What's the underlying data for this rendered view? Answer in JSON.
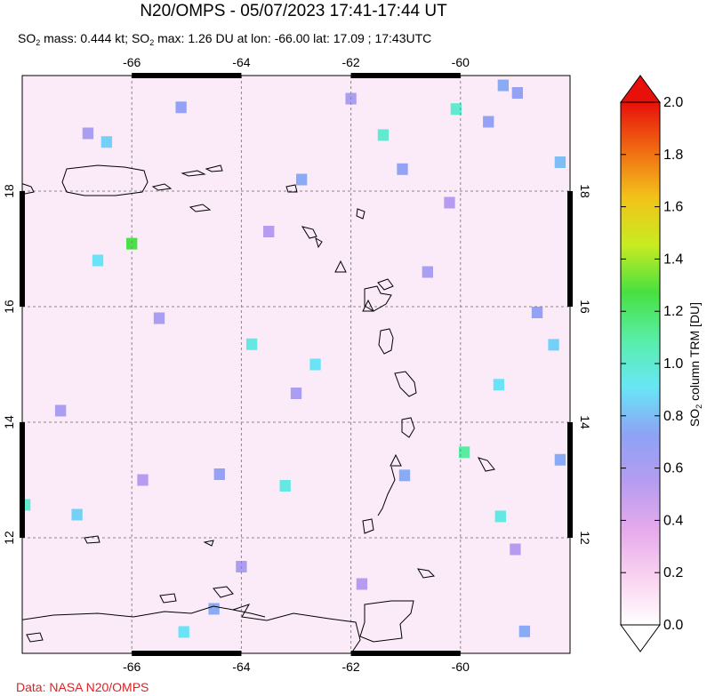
{
  "chart_data": {
    "type": "map",
    "title": "N20/OMPS - 05/07/2023 17:41-17:44 UT",
    "subtitle": [
      "SO",
      "2",
      " mass: 0.444 kt; SO",
      "2",
      " max: 1.26 DU at lon: -66.00 lat: 17.09 ; 17:43UTC"
    ],
    "colorbar_label": [
      "SO",
      "2",
      " column TRM [DU]"
    ],
    "source": "Data: NASA N20/OMPS",
    "xlim": [
      -68,
      -58
    ],
    "ylim": [
      10,
      20
    ],
    "xticks": [
      -66,
      -64,
      -62,
      -60
    ],
    "yticks": [
      12,
      14,
      16,
      18
    ],
    "grid": true,
    "clim": [
      0,
      2
    ],
    "cticks": [
      {
        "value": 0,
        "label": "0.0"
      },
      0.2,
      0.4,
      0.6,
      0.8,
      {
        "value": 1,
        "label": "1.0"
      },
      1.2,
      1.4,
      1.6,
      1.8,
      {
        "value": 2,
        "label": "2.0"
      }
    ],
    "colormap": [
      "#ffffff",
      "#f9d2f0",
      "#e6aaec",
      "#b69cf0",
      "#8ea2f5",
      "#68e6f6",
      "#58eea8",
      "#48e040",
      "#c8ec20",
      "#f2c21a",
      "#f06a12",
      "#e8100a"
    ],
    "pixels": {
      "lon": [
        -61.41,
        -60.08,
        -66.0,
        -63.81,
        -66.62,
        -63.2,
        -59.93,
        -59.27,
        -65.05,
        -67.95,
        -59.3,
        -58.3,
        -61.06,
        -59.22,
        -58.96,
        -58.18,
        -58.18,
        -61.02,
        -59.49,
        -62.65,
        -66.46,
        -62.9,
        -64.5,
        -58.83,
        -58.6,
        -65.1,
        -67.0,
        -64.4,
        -60.6,
        -62.0,
        -65.5,
        -63.5,
        -67.3,
        -60.2,
        -64.0,
        -61.8,
        -66.8,
        -59.0,
        -63.0,
        -65.8
      ],
      "lat": [
        18.97,
        19.42,
        17.09,
        15.35,
        16.8,
        12.9,
        13.48,
        12.37,
        10.37,
        12.57,
        14.65,
        15.34,
        18.38,
        19.83,
        19.7,
        18.5,
        13.35,
        13.08,
        19.2,
        15.0,
        18.85,
        18.2,
        10.77,
        10.38,
        15.9,
        19.45,
        12.4,
        13.1,
        16.6,
        19.6,
        15.8,
        17.3,
        14.2,
        17.8,
        11.5,
        11.2,
        19.0,
        11.8,
        14.5,
        13.0
      ],
      "values": [
        1.0,
        1.0,
        1.26,
        0.95,
        0.9,
        0.95,
        1.1,
        0.95,
        0.9,
        1.0,
        0.9,
        0.85,
        0.7,
        0.75,
        0.7,
        0.8,
        0.75,
        0.75,
        0.7,
        0.9,
        0.85,
        0.75,
        0.75,
        0.75,
        0.7,
        0.7,
        0.85,
        0.7,
        0.6,
        0.6,
        0.6,
        0.55,
        0.6,
        0.55,
        0.6,
        0.55,
        0.6,
        0.55,
        0.6,
        0.55
      ]
    }
  }
}
